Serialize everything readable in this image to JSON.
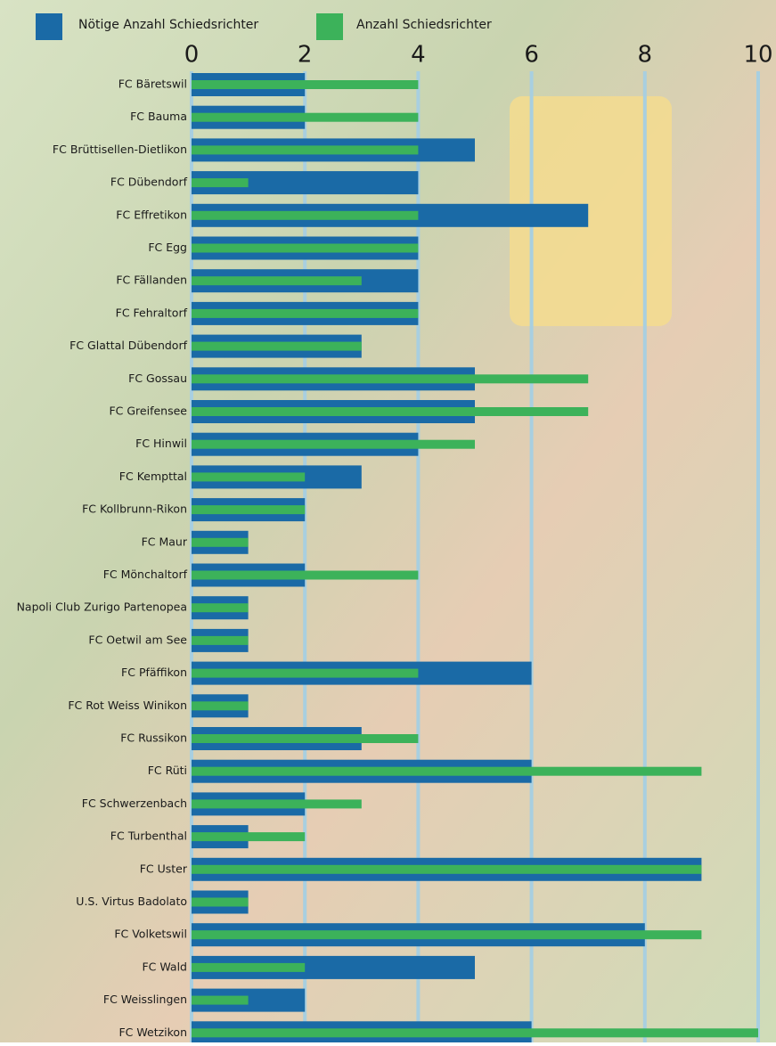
{
  "chart_data": {
    "type": "bar",
    "orientation": "horizontal",
    "categories": [
      "FC Bäretswil",
      "FC Bauma",
      "FC Brüttisellen-Dietlikon",
      "FC Dübendorf",
      "FC Effretikon",
      "FC Egg",
      "FC Fällanden",
      "FC Fehraltorf",
      "FC Glattal Dübendorf",
      "FC Gossau",
      "FC Greifensee",
      "FC Hinwil",
      "FC Kempttal",
      "FC Kollbrunn-Rikon",
      "FC Maur",
      "FC Mönchaltorf",
      "Napoli Club Zurigo Partenopea",
      "FC Oetwil am See",
      "FC Pfäffikon",
      "FC Rot Weiss Winikon",
      "FC Russikon",
      "FC Rüti",
      "FC Schwerzenbach",
      "FC Turbenthal",
      "FC Uster",
      "U.S. Virtus Badolato",
      "FC Volketswil",
      "FC Wald",
      "FC Weisslingen",
      "FC Wetzikon"
    ],
    "series": [
      {
        "name": "Nötige Anzahl Schiedsrichter",
        "color": "#1a6aa6",
        "values": [
          2,
          2,
          5,
          4,
          7,
          4,
          4,
          4,
          3,
          5,
          5,
          4,
          3,
          2,
          1,
          2,
          1,
          1,
          6,
          1,
          3,
          6,
          2,
          1,
          9,
          1,
          8,
          5,
          2,
          6
        ]
      },
      {
        "name": "Anzahl Schiedsrichter",
        "color": "#3cb25a",
        "values": [
          4,
          4,
          4,
          1,
          4,
          4,
          3,
          4,
          3,
          7,
          7,
          5,
          2,
          2,
          1,
          4,
          1,
          1,
          4,
          1,
          4,
          9,
          3,
          2,
          9,
          1,
          9,
          2,
          1,
          10
        ]
      }
    ],
    "xlim": [
      0,
      10
    ],
    "xticks": [
      0,
      2,
      4,
      6,
      8,
      10
    ],
    "grid": true
  }
}
